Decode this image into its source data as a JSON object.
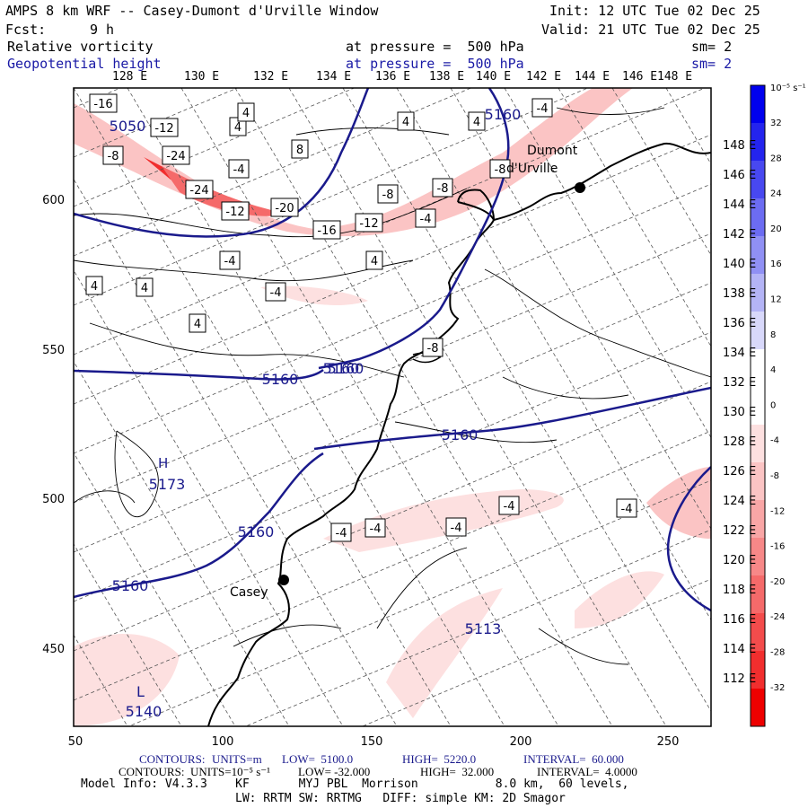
{
  "header": {
    "model_title": "AMPS 8 km WRF -- Casey-Dumont d'Urville Window",
    "init": "Init: 12 UTC Tue 02 Dec 25",
    "forecast_label": "Fcst:",
    "forecast_hours": "9 h",
    "valid": "Valid: 21 UTC Tue 02 Dec 25",
    "field1_name": "Relative vorticity",
    "field1_level": "at pressure =  500 hPa",
    "field1_smooth": "sm= 2",
    "field2_name": "Geopotential height",
    "field2_level": "at pressure =  500 hPa",
    "field2_smooth": "sm= 2"
  },
  "map": {
    "top_longitudes": [
      "128 E",
      "130 E",
      "132 E",
      "134 E",
      "136 E",
      "138 E",
      "140 E",
      "142 E",
      "144 E",
      "146 E",
      "148 E"
    ],
    "right_longitudes": [
      "148 E",
      "146 E",
      "144 E",
      "142 E",
      "140 E",
      "138 E",
      "136 E",
      "134 E",
      "132 E",
      "130 E",
      "128 E",
      "126 E",
      "124 E",
      "122 E",
      "120 E",
      "118 E",
      "116 E",
      "114 E",
      "112 E"
    ],
    "x_axis_ticks": [
      "50",
      "100",
      "150",
      "200",
      "250"
    ],
    "y_axis_ticks": [
      "600",
      "550",
      "500",
      "450"
    ],
    "stations": [
      {
        "name": "Dumont",
        "name2": "d'Urville"
      },
      {
        "name": "Casey"
      }
    ],
    "height_labels": [
      "5050",
      "5160",
      "5160",
      "5160",
      "5160",
      "5160",
      "5160",
      "5160",
      "5113",
      "5140",
      "5173"
    ],
    "high_marker": "H",
    "low_marker": "L",
    "vort_labels": [
      "-16",
      "-12",
      "-8",
      "-24",
      "-4",
      "-24",
      "-12",
      "-20",
      "-16",
      "-12",
      "-8",
      "-8",
      "-4",
      "-8",
      "-4",
      "4",
      "8",
      "4",
      "4",
      "4",
      "-4",
      "-4",
      "4",
      "4",
      "4",
      "4",
      "-8",
      "-4",
      "-4",
      "-4",
      "-4",
      "-4"
    ]
  },
  "colorbar": {
    "unit": "10⁻⁵ s⁻¹",
    "labels": [
      "32",
      "28",
      "24",
      "20",
      "16",
      "12",
      "8",
      "4",
      "0",
      "-4",
      "-8",
      "-12",
      "-16",
      "-20",
      "-24",
      "-28",
      "-32"
    ],
    "colors": [
      "#0000ee",
      "#2424ee",
      "#4848f0",
      "#6c6cf2",
      "#9090f4",
      "#b4b4f6",
      "#d8d8fa",
      "#ffffff",
      "#ffffff",
      "#fde0e0",
      "#fbc4c4",
      "#f9a6a6",
      "#f78888",
      "#f56a6a",
      "#f34c4c",
      "#f12e2e",
      "#ee0000"
    ]
  },
  "footer": {
    "contours1_label": "CONTOURS:",
    "contours1_units": "UNITS=m",
    "contours1_low": "LOW=  5100.0",
    "contours1_high": "HIGH=  5220.0",
    "contours1_interval": "INTERVAL=  60.000",
    "contours2_label": "CONTOURS:",
    "contours2_units": "UNITS=10⁻⁵ s⁻¹",
    "contours2_low": "LOW= -32.000",
    "contours2_high": "HIGH=  32.000",
    "contours2_interval": "INTERVAL=  4.0000",
    "model_info": "Model Info: V4.3.3    KF       MYJ PBL  Morrison           8.0 km,  60 levels,",
    "model_info2": "LW: RRTM SW: RRTMG   DIFF: simple KM: 2D Smagor"
  }
}
